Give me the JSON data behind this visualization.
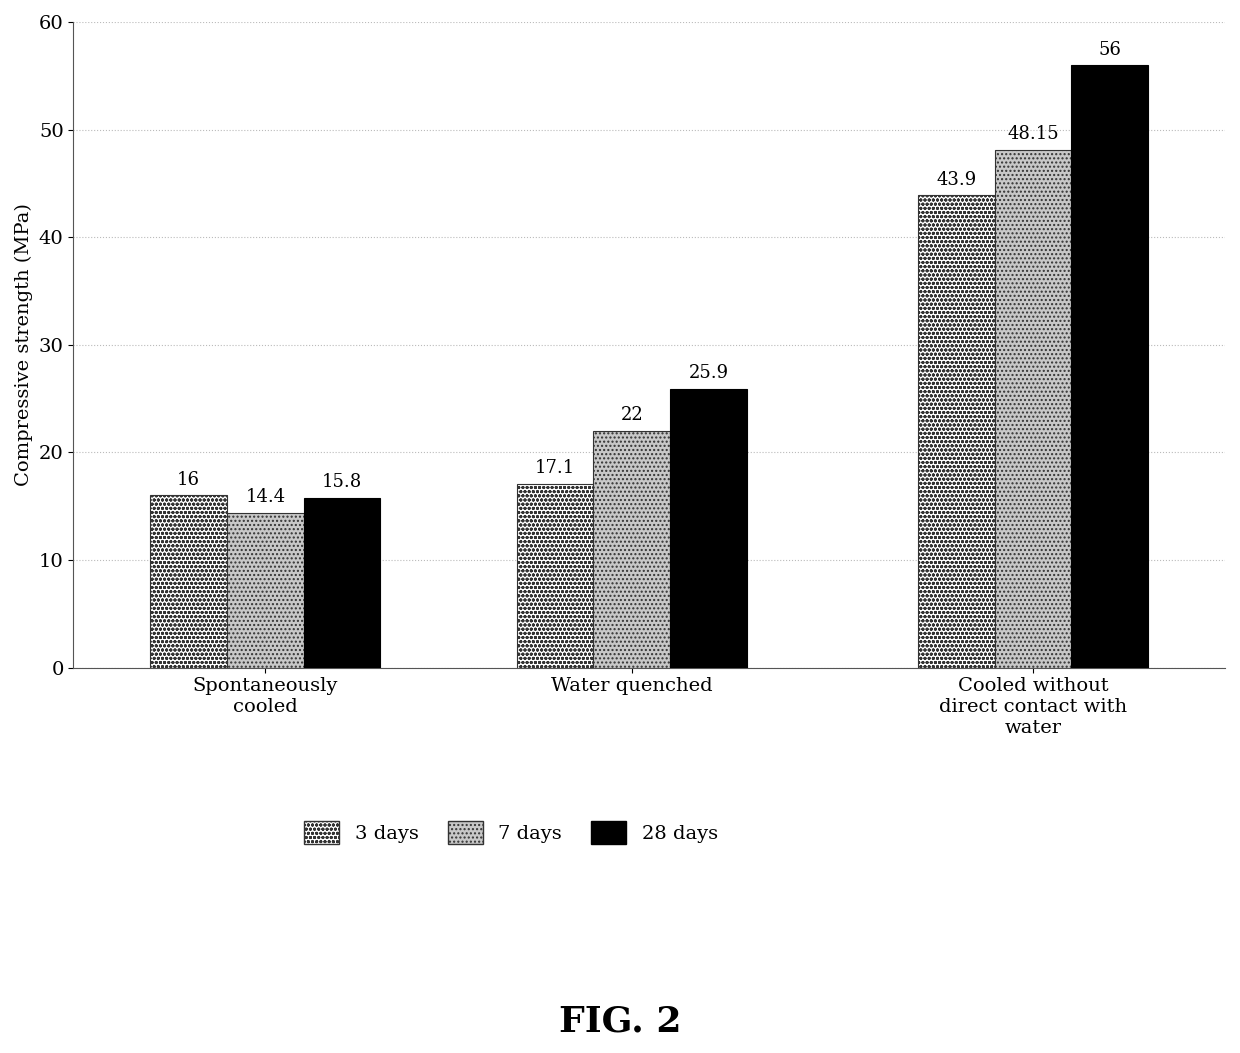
{
  "categories": [
    "Spontaneously\ncooled",
    "Water quenched",
    "Cooled without\ndirect contact with\nwater"
  ],
  "series": {
    "3 days": [
      16,
      17.1,
      43.9
    ],
    "7 days": [
      14.4,
      22,
      48.15
    ],
    "28 days": [
      15.8,
      25.9,
      56
    ]
  },
  "ylabel": "Compressive strength (MPa)",
  "ylim": [
    0,
    60
  ],
  "yticks": [
    0,
    10,
    20,
    30,
    40,
    50,
    60
  ],
  "figure_caption": "FIG. 2",
  "bar_width": 0.22,
  "background_color": "#ffffff",
  "grid_color": "#bbbbbb",
  "font_size_ticks": 14,
  "font_size_ylabel": 14,
  "font_size_labels": 13,
  "font_size_caption": 26,
  "font_size_legend": 14,
  "group_positions": [
    0.35,
    1.4,
    2.55
  ]
}
